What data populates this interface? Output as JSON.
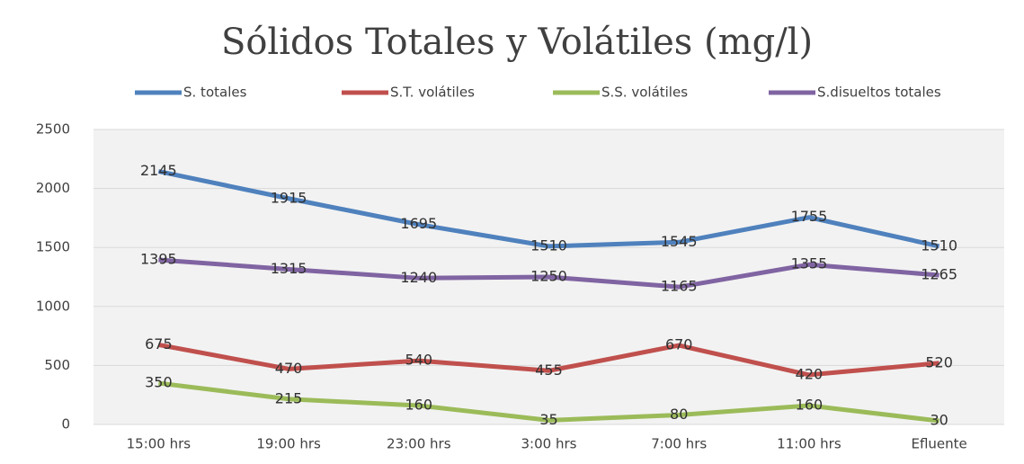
{
  "chart_data": {
    "type": "line",
    "title": "Sólidos Totales y Volátiles (mg/l)",
    "categories": [
      "15:00 hrs",
      "19:00 hrs",
      "23:00 hrs",
      "3:00 hrs",
      "7:00 hrs",
      "11:00 hrs",
      "Efluente"
    ],
    "series": [
      {
        "name": "S. totales",
        "color": "#4f81bd",
        "values": [
          2145,
          1915,
          1695,
          1510,
          1545,
          1755,
          1510
        ]
      },
      {
        "name": "S.T. volátiles",
        "color": "#c0504d",
        "values": [
          675,
          470,
          540,
          455,
          670,
          420,
          520
        ]
      },
      {
        "name": "S.S. volátiles",
        "color": "#9bbb59",
        "values": [
          350,
          215,
          160,
          35,
          80,
          160,
          30
        ]
      },
      {
        "name": "S.disueltos totales",
        "color": "#8064a2",
        "values": [
          1395,
          1315,
          1240,
          1250,
          1165,
          1355,
          1265
        ]
      }
    ],
    "ylim": [
      0,
      2500
    ],
    "yticks": [
      0,
      500,
      1000,
      1500,
      2000,
      2500
    ],
    "grid": true,
    "legend": "top"
  }
}
